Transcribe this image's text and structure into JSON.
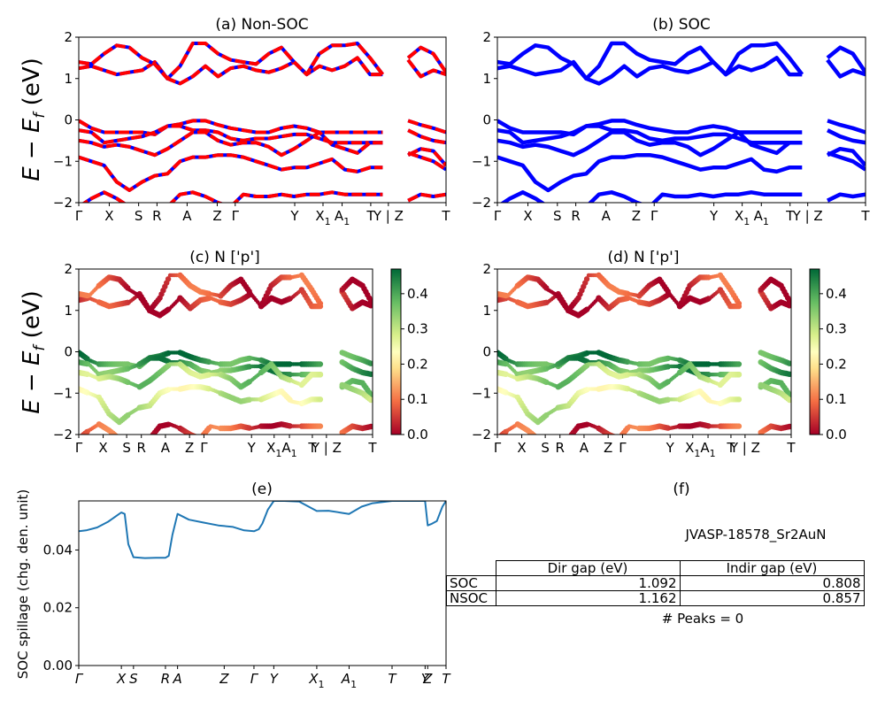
{
  "figure": {
    "panels": {
      "a": {
        "title": "(a) Non-SOC"
      },
      "b": {
        "title": "(b) SOC"
      },
      "c": {
        "title": "(c)  N ['p']"
      },
      "d": {
        "title": "(d) N ['p']"
      },
      "e": {
        "title": "(e)"
      },
      "f": {
        "title": "(f)"
      }
    },
    "ylabel_band": "E − E_f (eV)",
    "ylabel_spillage": "SOC spillage (chg. den. unit)"
  },
  "chart_data": [
    {
      "id": "a",
      "type": "line",
      "title": "(a) Non-SOC",
      "ylabel": "E − E_f (eV)",
      "ylim": [
        -2,
        2
      ],
      "yticks": [
        -2,
        -1,
        0,
        1,
        2
      ],
      "xticks": [
        "Γ",
        "X",
        "S",
        "R",
        "A",
        "Z",
        "Γ",
        "Y",
        "X₁",
        "A₁",
        "T",
        "Y | Z",
        "T"
      ],
      "xtick_pos": [
        0,
        0.083,
        0.163,
        0.213,
        0.295,
        0.377,
        0.426,
        0.588,
        0.665,
        0.717,
        0.795,
        0.843,
        1.0
      ],
      "line_colors": [
        "#ff0000",
        "#0000ff"
      ],
      "style": "dashed red over blue",
      "bands": [
        [
          1.25,
          1.3,
          1.2,
          1.1,
          1.15,
          1.2,
          1.4,
          1.0,
          0.88,
          1.05,
          1.3,
          1.05,
          1.25,
          1.3,
          1.2,
          1.15,
          1.25,
          1.4,
          1.1,
          1.3,
          1.2,
          1.3,
          1.5,
          1.1,
          1.1,
          null,
          1.45,
          1.05,
          1.2,
          1.1
        ],
        [
          1.4,
          1.35,
          1.6,
          1.8,
          1.75,
          1.5,
          1.35,
          1.0,
          1.3,
          1.85,
          1.85,
          1.6,
          1.45,
          1.4,
          1.35,
          1.6,
          1.75,
          1.4,
          1.1,
          1.6,
          1.8,
          1.8,
          1.85,
          1.5,
          1.1,
          null,
          1.5,
          1.75,
          1.6,
          1.15
        ],
        [
          -0.02,
          -0.2,
          -0.3,
          -0.3,
          -0.3,
          -0.3,
          -0.35,
          -0.15,
          -0.1,
          -0.02,
          -0.02,
          -0.12,
          -0.2,
          -0.25,
          -0.3,
          -0.3,
          -0.2,
          -0.15,
          -0.2,
          -0.3,
          -0.3,
          -0.3,
          -0.3,
          -0.3,
          -0.3,
          null,
          -0.02,
          -0.12,
          -0.2,
          -0.3
        ],
        [
          -0.25,
          -0.3,
          -0.55,
          -0.5,
          -0.45,
          -0.4,
          -0.3,
          -0.15,
          -0.15,
          -0.25,
          -0.25,
          -0.3,
          -0.45,
          -0.5,
          -0.45,
          -0.45,
          -0.4,
          -0.35,
          -0.35,
          -0.45,
          -0.55,
          -0.55,
          -0.55,
          -0.55,
          -0.55,
          null,
          -0.25,
          -0.4,
          -0.5,
          -0.55
        ],
        [
          -0.5,
          -0.55,
          -0.65,
          -0.6,
          -0.65,
          -0.75,
          -0.85,
          -0.7,
          -0.5,
          -0.3,
          -0.3,
          -0.5,
          -0.6,
          -0.55,
          -0.55,
          -0.65,
          -0.85,
          -0.7,
          -0.5,
          -0.3,
          -0.6,
          -0.7,
          -0.8,
          -0.55,
          -0.55,
          null,
          -0.85,
          -0.7,
          -0.75,
          -1.1
        ],
        [
          -0.9,
          -1.0,
          -1.1,
          -1.5,
          -1.7,
          -1.5,
          -1.35,
          -1.3,
          -1.0,
          -0.9,
          -0.9,
          -0.85,
          -0.85,
          -0.9,
          -1.0,
          -1.1,
          -1.2,
          -1.15,
          -1.15,
          -1.05,
          -0.95,
          -1.2,
          -1.25,
          -1.15,
          -1.15,
          null,
          -0.8,
          -0.9,
          -1.0,
          -1.2
        ],
        [
          -2.1,
          -1.9,
          -1.75,
          -1.9,
          -2.1,
          null,
          null,
          -2.1,
          -1.8,
          -1.75,
          -1.85,
          -2.0,
          -2.1,
          -1.8,
          -1.85,
          -1.85,
          -1.8,
          -1.85,
          -1.8,
          -1.8,
          -1.75,
          -1.8,
          -1.8,
          -1.8,
          -1.8,
          null,
          -1.95,
          -1.8,
          -1.85,
          -1.8
        ]
      ]
    },
    {
      "id": "b",
      "type": "line",
      "title": "(b) SOC",
      "ylabel": "",
      "ylim": [
        -2,
        2
      ],
      "yticks": [
        -2,
        -1,
        0,
        1,
        2
      ],
      "xticks": [
        "Γ",
        "X",
        "S",
        "R",
        "A",
        "Z",
        "Γ",
        "Y",
        "X₁",
        "A₁",
        "T",
        "Y | Z",
        "T"
      ],
      "line_colors": [
        "#0000ff"
      ],
      "note": "same band structure as (a), drawn solid blue"
    },
    {
      "id": "c",
      "type": "scatter",
      "title": "(c)  N ['p']",
      "ylabel": "E − E_f (eV)",
      "ylim": [
        -2,
        2
      ],
      "yticks": [
        -2,
        -1,
        0,
        1,
        2
      ],
      "xticks": [
        "Γ",
        "X",
        "S",
        "R",
        "A",
        "Z",
        "Γ",
        "Y",
        "X₁",
        "A₁",
        "T",
        "Y | Z",
        "T"
      ],
      "colormap": "RdYlGn",
      "colorbar": {
        "min": 0.0,
        "max": 0.47,
        "ticks": [
          0.0,
          0.1,
          0.2,
          0.3,
          0.4
        ]
      },
      "weights_by_band": [
        0.03,
        0.05,
        0.42,
        0.4,
        0.33,
        0.28,
        0.06
      ],
      "note": "projected band weight of N p orbitals; conduction bands ~0-0.1 (red), valence bands ~0.25-0.45 (green)"
    },
    {
      "id": "d",
      "type": "scatter",
      "title": "(d) N ['p']",
      "ylabel": "",
      "ylim": [
        -2,
        2
      ],
      "yticks": [
        -2,
        -1,
        0,
        1,
        2
      ],
      "xticks": [
        "Γ",
        "X",
        "S",
        "R",
        "A",
        "Z",
        "Γ",
        "Y",
        "X₁",
        "A₁",
        "T",
        "Y | Z",
        "T"
      ],
      "colormap": "RdYlGn",
      "colorbar": {
        "min": 0.0,
        "max": 0.47,
        "ticks": [
          0.0,
          0.1,
          0.2,
          0.3,
          0.4
        ]
      }
    },
    {
      "id": "e",
      "type": "line",
      "title": "(e)",
      "ylabel": "SOC spillage (chg. den. unit)",
      "ylim": [
        0.0,
        0.057
      ],
      "yticks": [
        0.0,
        0.02,
        0.04
      ],
      "xticks": [
        "Γ",
        "X",
        "S",
        "R",
        "A",
        "Z",
        "Γ",
        "Y",
        "X₁",
        "A₁",
        "T",
        "Y",
        "Z",
        "T"
      ],
      "xtick_pos": [
        0,
        0.116,
        0.149,
        0.236,
        0.269,
        0.396,
        0.477,
        0.531,
        0.648,
        0.736,
        0.853,
        0.943,
        0.95,
        1.0
      ],
      "color": "#1f77b4",
      "x": [
        0,
        0.02,
        0.05,
        0.08,
        0.11,
        0.116,
        0.125,
        0.135,
        0.149,
        0.18,
        0.21,
        0.236,
        0.245,
        0.255,
        0.269,
        0.3,
        0.34,
        0.38,
        0.42,
        0.45,
        0.477,
        0.49,
        0.5,
        0.515,
        0.531,
        0.56,
        0.6,
        0.648,
        0.68,
        0.72,
        0.736,
        0.77,
        0.8,
        0.853,
        0.9,
        0.94,
        0.943,
        0.95,
        0.96,
        0.975,
        0.99,
        1.0
      ],
      "y": [
        0.0465,
        0.0468,
        0.0478,
        0.0498,
        0.0525,
        0.053,
        0.0525,
        0.042,
        0.0375,
        0.0372,
        0.0373,
        0.0373,
        0.038,
        0.0452,
        0.0525,
        0.0505,
        0.0495,
        0.0485,
        0.048,
        0.0468,
        0.0465,
        0.0472,
        0.0492,
        0.054,
        0.057,
        0.057,
        0.0568,
        0.0535,
        0.0536,
        0.0528,
        0.0525,
        0.055,
        0.0562,
        0.057,
        0.057,
        0.057,
        0.057,
        0.0485,
        0.049,
        0.05,
        0.055,
        0.057
      ]
    }
  ],
  "table_f": {
    "title": "JVASP-18578_Sr2AuN",
    "columns": [
      "",
      "Dir gap (eV)",
      "Indir gap (eV)"
    ],
    "rows": [
      {
        "label": "SOC",
        "dir_gap": "1.092",
        "indir_gap": "0.808"
      },
      {
        "label": "NSOC",
        "dir_gap": "1.162",
        "indir_gap": "0.857"
      }
    ],
    "peaks_text": "# Peaks = 0"
  }
}
